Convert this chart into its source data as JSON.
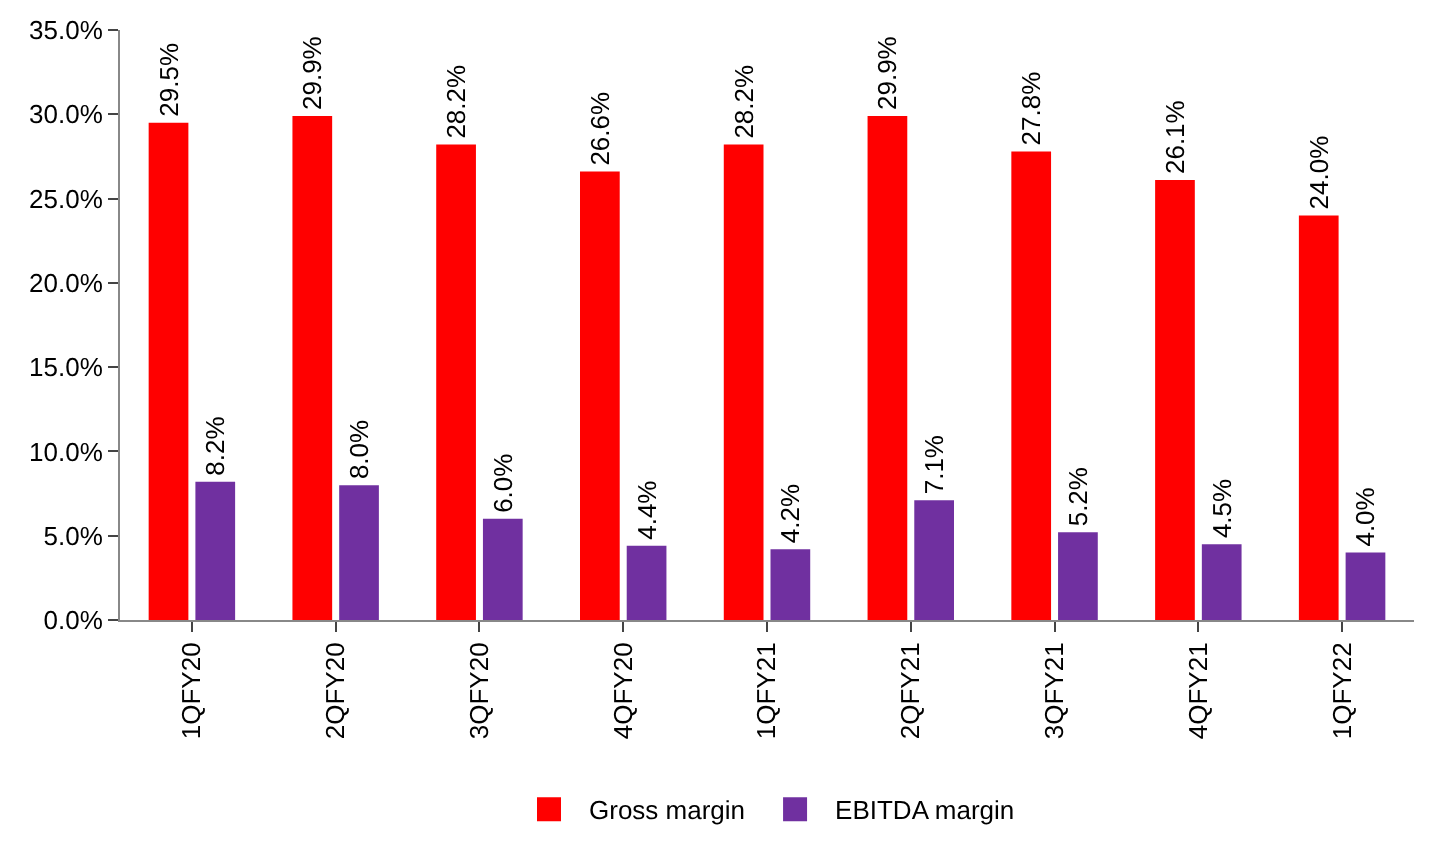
{
  "chart_data": {
    "type": "bar",
    "categories": [
      "1QFY20",
      "2QFY20",
      "3QFY20",
      "4QFY20",
      "1QFY21",
      "2QFY21",
      "3QFY21",
      "4QFY21",
      "1QFY22"
    ],
    "series": [
      {
        "name": "Gross margin",
        "color": "#ff0000",
        "values": [
          29.5,
          29.9,
          28.2,
          26.6,
          28.2,
          29.9,
          27.8,
          26.1,
          24.0
        ],
        "value_labels": [
          "29.5%",
          "29.9%",
          "28.2%",
          "26.6%",
          "28.2%",
          "29.9%",
          "27.8%",
          "26.1%",
          "24.0%"
        ]
      },
      {
        "name": "EBITDA margin",
        "color": "#7030a0",
        "values": [
          8.2,
          8.0,
          6.0,
          4.4,
          4.2,
          7.1,
          5.2,
          4.5,
          4.0
        ],
        "value_labels": [
          "8.2%",
          "8.0%",
          "6.0%",
          "4.4%",
          "4.2%",
          "7.1%",
          "5.2%",
          "4.5%",
          "4.0%"
        ]
      }
    ],
    "ylim": [
      0,
      35
    ],
    "yticks": [
      {
        "value": 0,
        "label": "0.0%"
      },
      {
        "value": 5,
        "label": "5.0%"
      },
      {
        "value": 10,
        "label": "10.0%"
      },
      {
        "value": 15,
        "label": "15.0%"
      },
      {
        "value": 20,
        "label": "20.0%"
      },
      {
        "value": 25,
        "label": "25.0%"
      },
      {
        "value": 30,
        "label": "30.0%"
      },
      {
        "value": 35,
        "label": "35.0%"
      }
    ],
    "legend": "bottom"
  }
}
